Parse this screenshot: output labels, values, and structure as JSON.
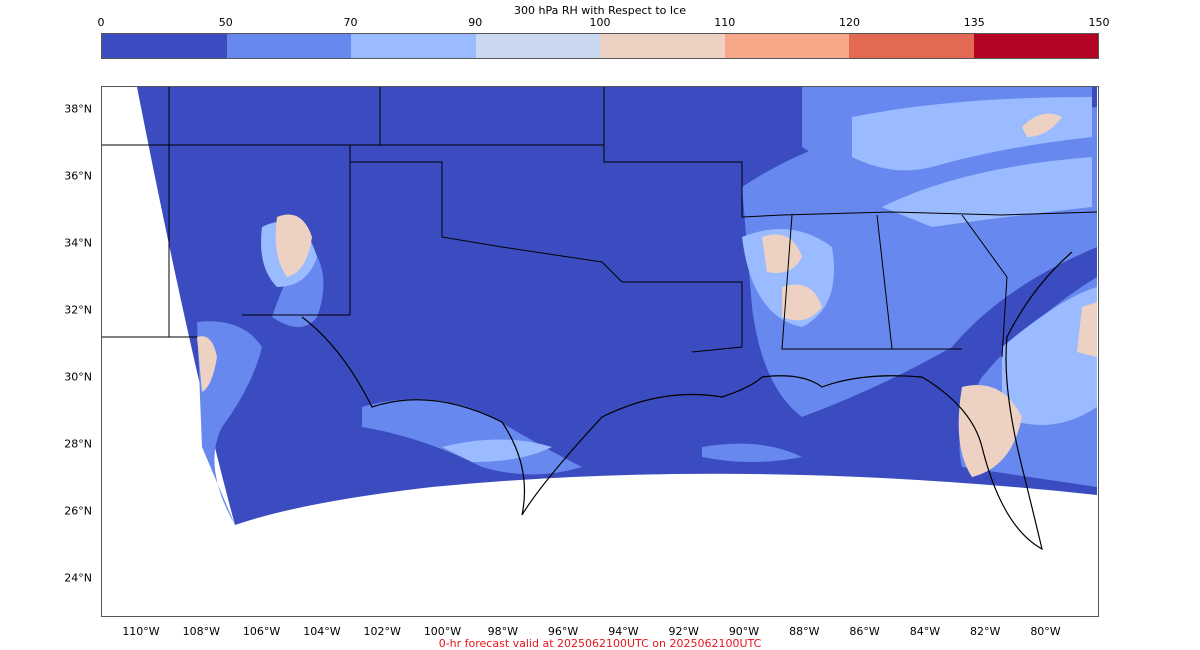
{
  "colorbar": {
    "title": "300 hPa RH with Respect to Ice",
    "ticks": [
      "0",
      "50",
      "70",
      "90",
      "100",
      "110",
      "120",
      "135",
      "150"
    ],
    "colors": [
      "#3b4cc0",
      "#6788ee",
      "#9abbff",
      "#c9d7f0",
      "#edd1c2",
      "#f7a889",
      "#e26952",
      "#b40426"
    ]
  },
  "map": {
    "lat_labels": [
      "38°N",
      "36°N",
      "34°N",
      "32°N",
      "30°N",
      "28°N",
      "26°N",
      "24°N"
    ],
    "lon_labels": [
      "110°W",
      "108°W",
      "106°W",
      "104°W",
      "102°W",
      "100°W",
      "98°W",
      "96°W",
      "94°W",
      "92°W",
      "90°W",
      "88°W",
      "86°W",
      "84°W",
      "82°W",
      "80°W"
    ],
    "field_colors": {
      "low": "#3b4cc0",
      "mid": "#6788ee",
      "high": "#9abbff",
      "moist": "#edd1c2"
    }
  },
  "caption": "0-hr forecast valid at 2025062100UTC on 2025062100UTC"
}
